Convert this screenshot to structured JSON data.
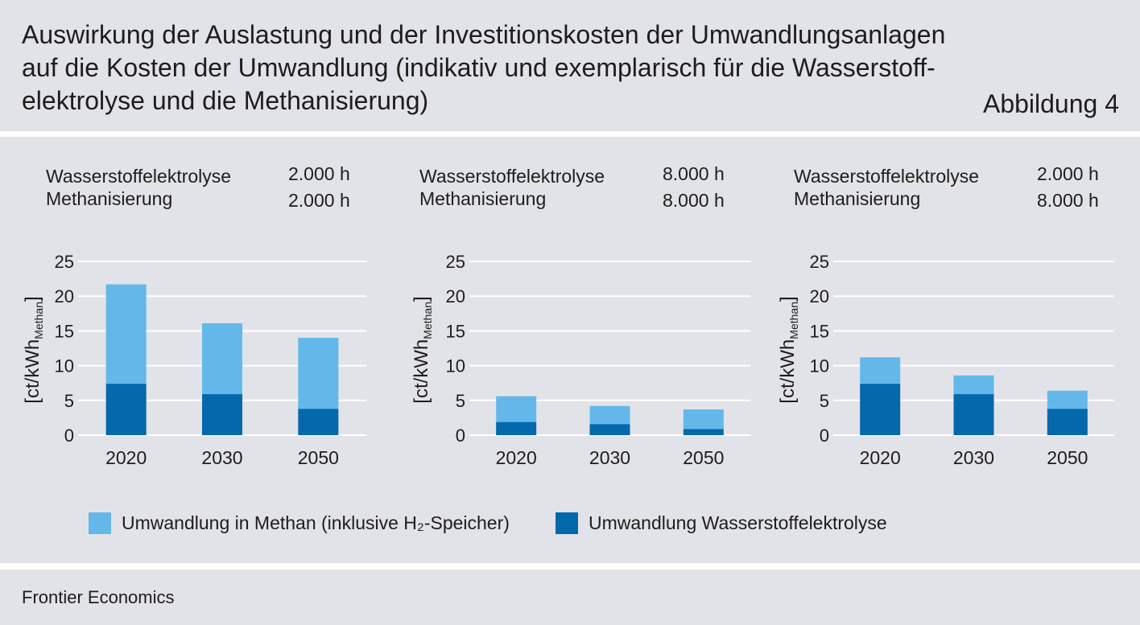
{
  "header": {
    "title_lines": [
      "Auswirkung der Auslastung und der Investitionskosten der Umwandlungsanlagen",
      "auf die Kosten der Umwandlung (indikativ und exemplarisch für die Wasserstoff-",
      "elektrolyse und die Methanisierung)"
    ],
    "figure_label": "Abbildung 4"
  },
  "chart_data": [
    {
      "type": "bar",
      "stacked": true,
      "scenario": [
        {
          "label": "Wasserstoffelektrolyse",
          "value": "2.000 h"
        },
        {
          "label": "Methanisierung",
          "value": "2.000 h"
        }
      ],
      "categories": [
        "2020",
        "2030",
        "2050"
      ],
      "series": [
        {
          "name": "Umwandlung Wasserstoffelektrolyse",
          "color": "#0468ad",
          "values": [
            7.4,
            5.9,
            3.8
          ]
        },
        {
          "name": "Umwandlung in Methan (inklusive H₂-Speicher)",
          "color": "#63b8e9",
          "values": [
            14.3,
            10.2,
            10.2
          ]
        }
      ],
      "ylabel": "[ct/kWh",
      "ylabel_subscript": "Methan",
      "ylabel_close": "]",
      "ylim": [
        0,
        25
      ],
      "yticks": [
        0,
        5,
        10,
        15,
        20,
        25
      ],
      "grid": true,
      "legend": "bottom"
    },
    {
      "type": "bar",
      "stacked": true,
      "scenario": [
        {
          "label": "Wasserstoffelektrolyse",
          "value": "8.000 h"
        },
        {
          "label": "Methanisierung",
          "value": "8.000 h"
        }
      ],
      "categories": [
        "2020",
        "2030",
        "2050"
      ],
      "series": [
        {
          "name": "Umwandlung Wasserstoffelektrolyse",
          "color": "#0468ad",
          "values": [
            1.9,
            1.6,
            0.9
          ]
        },
        {
          "name": "Umwandlung in Methan (inklusive H₂-Speicher)",
          "color": "#63b8e9",
          "values": [
            3.7,
            2.6,
            2.8
          ]
        }
      ],
      "ylabel": "[ct/kWh",
      "ylabel_subscript": "Methan",
      "ylabel_close": "]",
      "ylim": [
        0,
        25
      ],
      "yticks": [
        0,
        5,
        10,
        15,
        20,
        25
      ],
      "grid": true,
      "legend": "bottom"
    },
    {
      "type": "bar",
      "stacked": true,
      "scenario": [
        {
          "label": "Wasserstoffelektrolyse",
          "value": "2.000 h"
        },
        {
          "label": "Methanisierung",
          "value": "8.000 h"
        }
      ],
      "categories": [
        "2020",
        "2030",
        "2050"
      ],
      "series": [
        {
          "name": "Umwandlung Wasserstoffelektrolyse",
          "color": "#0468ad",
          "values": [
            7.4,
            5.9,
            3.8
          ]
        },
        {
          "name": "Umwandlung in Methan (inklusive H₂-Speicher)",
          "color": "#63b8e9",
          "values": [
            3.8,
            2.7,
            2.6
          ]
        }
      ],
      "ylabel": "[ct/kWh",
      "ylabel_subscript": "Methan",
      "ylabel_close": "]",
      "ylim": [
        0,
        25
      ],
      "yticks": [
        0,
        5,
        10,
        15,
        20,
        25
      ],
      "grid": true,
      "legend": "bottom"
    }
  ],
  "footer": {
    "source": "Frontier Economics"
  }
}
